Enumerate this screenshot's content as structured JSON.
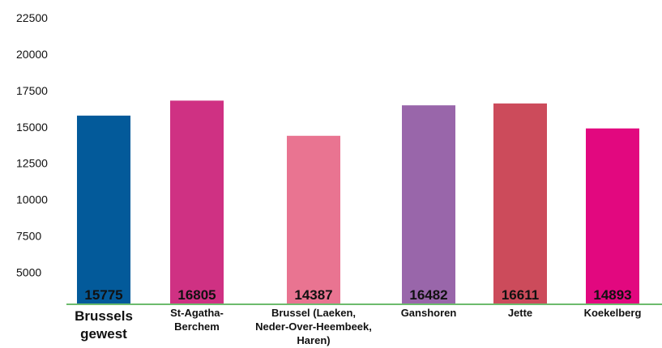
{
  "chart_data": {
    "type": "bar",
    "categories": [
      [
        "Brussels",
        "gewest"
      ],
      [
        "St-Agatha-",
        "Berchem"
      ],
      [
        "Brussel (Laeken,",
        "Neder-Over-Heembeek,",
        "Haren)"
      ],
      [
        "Ganshoren"
      ],
      [
        "Jette"
      ],
      [
        "Koekelberg"
      ]
    ],
    "values": [
      15775,
      16805,
      14387,
      16482,
      16611,
      14893
    ],
    "colors": [
      "#035a9a",
      "#cf3183",
      "#e97491",
      "#9966aa",
      "#cc4b5b",
      "#e2087f"
    ],
    "ylim": [
      2800,
      22500
    ],
    "yticks": [
      5000,
      7500,
      10000,
      12500,
      15000,
      17500,
      20000,
      22500
    ],
    "grid": false
  }
}
